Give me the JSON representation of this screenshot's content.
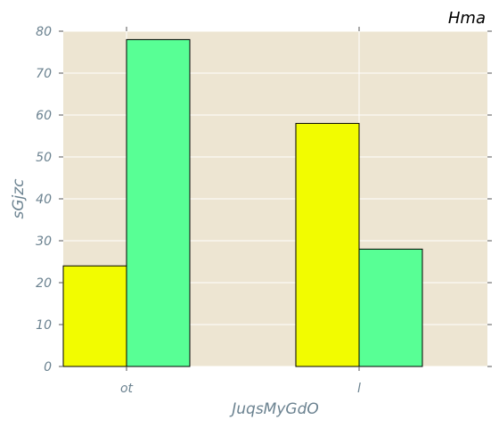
{
  "chart_data": {
    "type": "bar",
    "title": "Hma",
    "xlabel": "JuqsMyGdO",
    "ylabel": "sGjzc",
    "categories": [
      "ot",
      "l"
    ],
    "series": [
      {
        "values": [
          24,
          58
        ],
        "color": "#f2fc00"
      },
      {
        "values": [
          78,
          28
        ],
        "color": "#58ff95"
      }
    ],
    "ylim": [
      0,
      80
    ],
    "yticks": [
      0,
      10,
      20,
      30,
      40,
      50,
      60,
      70,
      80
    ],
    "grid": true,
    "background_color": "#ede5d2",
    "grid_color": "#ffffff",
    "legend": "none"
  }
}
